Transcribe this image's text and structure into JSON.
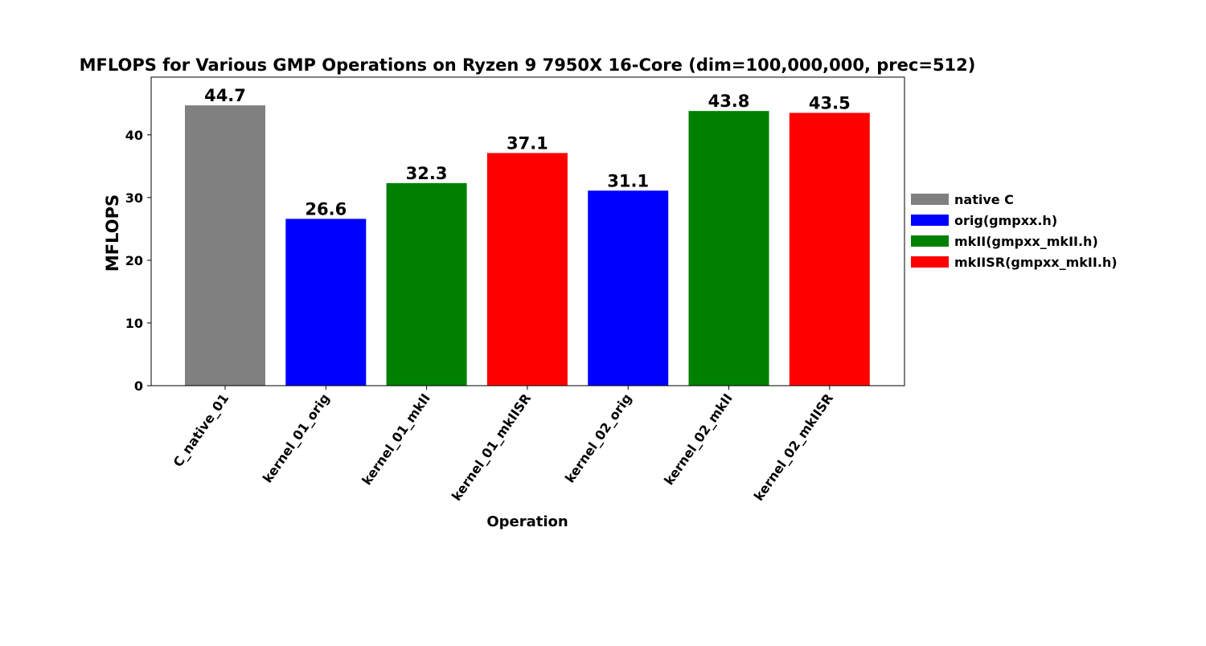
{
  "chart_data": {
    "type": "bar",
    "title": "MFLOPS for Various GMP Operations on Ryzen 9 7950X 16-Core (dim=100,000,000, prec=512)",
    "xlabel": "Operation",
    "ylabel": "MFLOPS",
    "categories": [
      "C_native_01",
      "kernel_01_orig",
      "kernel_01_mkII",
      "kernel_01_mkIISR",
      "kernel_02_orig",
      "kernel_02_mkII",
      "kernel_02_mkIISR"
    ],
    "values": [
      44.7,
      26.6,
      32.3,
      37.1,
      31.1,
      43.8,
      43.5
    ],
    "value_labels": [
      "44.7",
      "26.6",
      "32.3",
      "37.1",
      "31.1",
      "43.8",
      "43.5"
    ],
    "bar_series": [
      0,
      1,
      2,
      3,
      1,
      2,
      3
    ],
    "series": [
      {
        "name": "native C",
        "color": "#808080"
      },
      {
        "name": "orig(gmpxx.h)",
        "color": "#0000ff"
      },
      {
        "name": "mkII(gmpxx_mkII.h)",
        "color": "#008000"
      },
      {
        "name": "mkIISR(gmpxx_mkII.h)",
        "color": "#ff0000"
      }
    ],
    "yticks": [
      0,
      10,
      20,
      30,
      40
    ],
    "ylim": [
      0,
      49.2
    ],
    "grid": false,
    "legend_position": "outside-right"
  }
}
